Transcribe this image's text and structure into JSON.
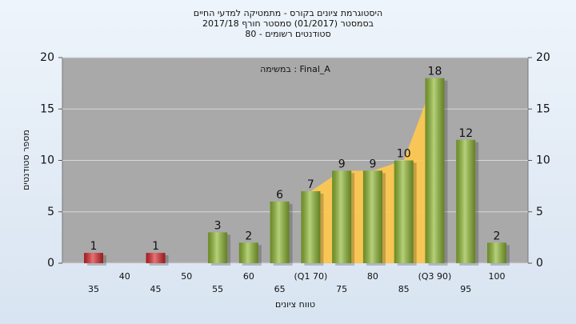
{
  "chart_data": {
    "type": "bar",
    "title": [
      "היסטוגרמת ציונים בקורס - מתמטיקה למדעי החיים",
      "בסמסטר (01/2017) סמסטר חורף 2017/18",
      "סטודנטים רשומים - 80"
    ],
    "annotation": "Final_A : במשימה",
    "x_label": "טווח ציונים",
    "y_label": "מספר סטודנטים",
    "categories": [
      "35",
      "40",
      "45",
      "50",
      "55",
      "60",
      "65",
      "(Q1 70)",
      "75",
      "80",
      "85",
      "(Q3 90)",
      "95",
      "100"
    ],
    "values": [
      1,
      0,
      1,
      0,
      3,
      2,
      6,
      7,
      9,
      9,
      10,
      18,
      12,
      2
    ],
    "colors": [
      "#d9262b",
      "#d9262b",
      "#d9262b",
      "#d9262b",
      "#8fb832",
      "#8fb832",
      "#8fb832",
      "#8fb832",
      "#8fb832",
      "#8fb832",
      "#8fb832",
      "#8fb832",
      "#8fb832",
      "#8fb832"
    ],
    "ylim": [
      0,
      20
    ],
    "yticks": [
      0,
      5,
      10,
      15,
      20
    ],
    "y2lim": [
      0,
      20
    ],
    "y2ticks": [
      0,
      5,
      10,
      15,
      20
    ],
    "grid": true
  }
}
